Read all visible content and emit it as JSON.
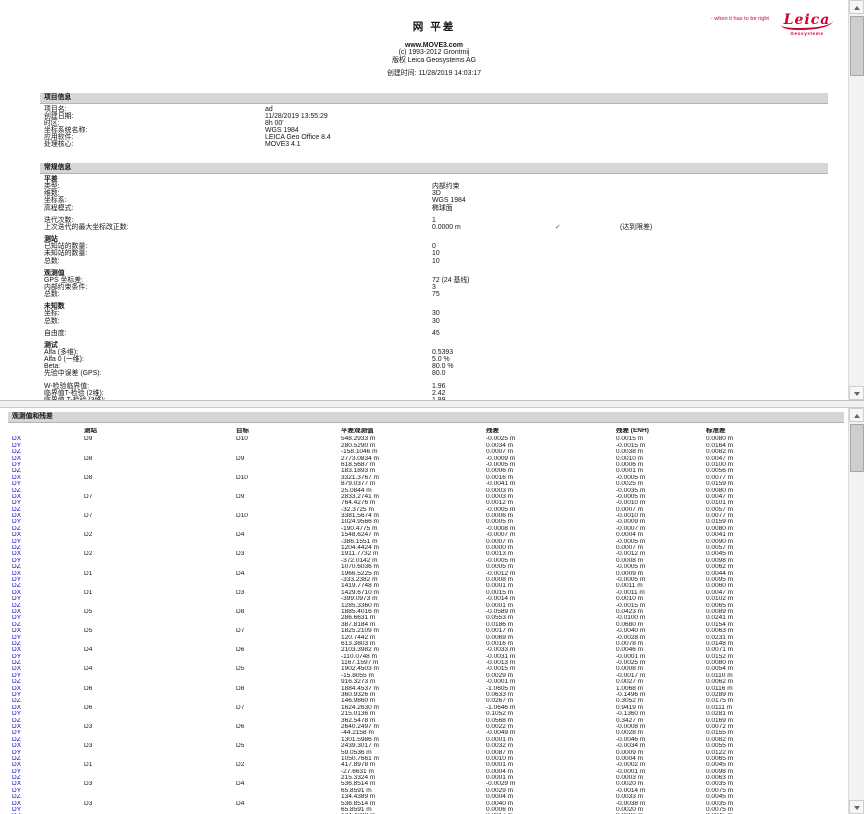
{
  "header": {
    "title": "网 平差",
    "site": "www.MOVE3.com",
    "copyright1": "(c) 1993-2012 Grontmij",
    "copyright2": "版权 Leica Geosystems AG",
    "created": "创建时间: 11/28/2019 14:03:17",
    "tagline": "- when it has to be right",
    "brand": "Leica",
    "brand_sub": "Geosystems",
    "brand_color": "#d6002f"
  },
  "colors": {
    "link_blue": "#0000cc",
    "check_green": "#089408",
    "section_bar": "#d6d6d6"
  },
  "check_glyph": "✓",
  "project_info": {
    "section_title": "项目信息",
    "rows": [
      [
        "项目名:",
        "ad"
      ],
      [
        "创建日期:",
        "11/28/2019 13:55:29"
      ],
      [
        "时区:",
        "8h 00'"
      ],
      [
        "坐标系统名称:",
        "WGS 1984"
      ],
      [
        "应用软件:",
        "LEICA Geo Office 8.4"
      ],
      [
        "处理核心:",
        "MOVE3 4.1"
      ]
    ]
  },
  "general_info": {
    "section_title": "常规信息",
    "rows": [
      {
        "t": "h",
        "label": "平差"
      },
      {
        "t": "r",
        "label": "类型:",
        "value": "内部约束"
      },
      {
        "t": "r",
        "label": "维数:",
        "value": "3D"
      },
      {
        "t": "r",
        "label": "坐标系:",
        "value": "WGS 1984"
      },
      {
        "t": "r",
        "label": "高程模式:",
        "value": "椭球面"
      },
      {
        "t": "s"
      },
      {
        "t": "r",
        "label": "迭代次数:",
        "value": "1"
      },
      {
        "t": "r",
        "label": "上次迭代的最大坐标改正数:",
        "value": "0.0000 m",
        "check": true,
        "note": "(达到限差)"
      },
      {
        "t": "s"
      },
      {
        "t": "h",
        "label": "测站"
      },
      {
        "t": "r",
        "label": "已知站的数量:",
        "value": "0"
      },
      {
        "t": "r",
        "label": "未知站的数量:",
        "value": "10"
      },
      {
        "t": "r",
        "label": "总数:",
        "value": "10"
      },
      {
        "t": "s"
      },
      {
        "t": "h",
        "label": "观测值"
      },
      {
        "t": "r",
        "label": "GPS 坐标差:",
        "value": "72 (24 基线)"
      },
      {
        "t": "r",
        "label": "内部约束条件:",
        "value": "3"
      },
      {
        "t": "r",
        "label": "总数:",
        "value": "75"
      },
      {
        "t": "s"
      },
      {
        "t": "h",
        "label": "未知数"
      },
      {
        "t": "r",
        "label": "坐标:",
        "value": "30"
      },
      {
        "t": "r",
        "label": "总数:",
        "value": "30"
      },
      {
        "t": "s"
      },
      {
        "t": "r",
        "label": "自由度:",
        "value": "45"
      },
      {
        "t": "s"
      },
      {
        "t": "h",
        "label": "测试"
      },
      {
        "t": "r",
        "label": "Alfa (多维):",
        "value": "0.5393"
      },
      {
        "t": "r",
        "label": "Alfa 0 (一维):",
        "value": "5.0 %"
      },
      {
        "t": "r",
        "label": "Beta:",
        "value": "80.0 %"
      },
      {
        "t": "r",
        "label": "先验中误差 (GPS):",
        "value": "80.0"
      },
      {
        "t": "s"
      },
      {
        "t": "r",
        "label": "W-检验临界值:",
        "value": "1.96"
      },
      {
        "t": "r",
        "label": "临界值T-检验 (2维):",
        "value": "2.42"
      },
      {
        "t": "r",
        "label": "临界值 T-检验 (3维):",
        "value": "1.89"
      },
      {
        "t": "r",
        "label": "F-检验临界值:",
        "value": "0.96"
      },
      {
        "t": "r",
        "label": "F-检验:",
        "value": "0.39",
        "check": true,
        "note": "(接受)"
      }
    ]
  },
  "observations": {
    "section_title": "观测值和残差",
    "columns": [
      "",
      "测站",
      "目标",
      "平差观测值",
      "残差",
      "残差 (ENH)",
      "标准差"
    ],
    "rows": [
      [
        "DX",
        "D9",
        "D10",
        "548.2933 m",
        "-0.0025 m",
        "0.0015 m",
        "0.0080 m"
      ],
      [
        "DY",
        "",
        "",
        "280.5290 m",
        "0.0034 m",
        "-0.0015 m",
        "0.0164 m"
      ],
      [
        "DZ",
        "",
        "",
        "-158.1046 m",
        "0.0007 m",
        "0.0038 m",
        "0.0082 m"
      ],
      [
        "DX",
        "D8",
        "D9",
        "2773.0834 m",
        "-0.0009 m",
        "0.0010 m",
        "0.0047 m"
      ],
      [
        "DY",
        "",
        "",
        "618.5687 m",
        "-0.0005 m",
        "0.0006 m",
        "0.0100 m"
      ],
      [
        "DZ",
        "",
        "",
        "183.1893 m",
        "0.0006 m",
        "0.0001 m",
        "0.0056 m"
      ],
      [
        "DX",
        "D8",
        "D10",
        "3321.3767 m",
        "0.0016 m",
        "-0.0005 m",
        "0.0077 m"
      ],
      [
        "DY",
        "",
        "",
        "879.0377 m",
        "-0.0041 m",
        "0.0025 m",
        "0.0159 m"
      ],
      [
        "DZ",
        "",
        "",
        "25.0844 m",
        "0.0003 m",
        "-0.0035 m",
        "0.0080 m"
      ],
      [
        "DX",
        "D7",
        "D9",
        "2833.2741 m",
        "0.0003 m",
        "-0.0005 m",
        "0.0047 m"
      ],
      [
        "DY",
        "",
        "",
        "764.4276 m",
        "0.0012 m",
        "-0.0010 m",
        "0.0101 m"
      ],
      [
        "DZ",
        "",
        "",
        "-32.3725 m",
        "-0.0005 m",
        "0.0007 m",
        "0.0057 m"
      ],
      [
        "DX",
        "D7",
        "D10",
        "3381.5674 m",
        "0.0006 m",
        "-0.0010 m",
        "0.0077 m"
      ],
      [
        "DY",
        "",
        "",
        "1024.9566 m",
        "0.0005 m",
        "-0.0009 m",
        "0.0159 m"
      ],
      [
        "DZ",
        "",
        "",
        "-190.4775 m",
        "-0.0008 m",
        "-0.0007 m",
        "0.0080 m"
      ],
      [
        "DX",
        "D2",
        "D4",
        "1548.6247 m",
        "-0.0007 m",
        "0.0004 m",
        "0.0041 m"
      ],
      [
        "DY",
        "",
        "",
        "-386.1551 m",
        "0.0007 m",
        "-0.0005 m",
        "0.0090 m"
      ],
      [
        "DZ",
        "",
        "",
        "1204.4424 m",
        "0.0000 m",
        "0.0007 m",
        "0.0057 m"
      ],
      [
        "DX",
        "D2",
        "D3",
        "1911.7732 m",
        "0.0013 m",
        "-0.0012 m",
        "0.0045 m"
      ],
      [
        "DY",
        "",
        "",
        "-372.0142 m",
        "-0.0005 m",
        "0.0008 m",
        "0.0098 m"
      ],
      [
        "DZ",
        "",
        "",
        "1070.6036 m",
        "0.0005 m",
        "-0.0005 m",
        "0.0062 m"
      ],
      [
        "DX",
        "D1",
        "D4",
        "1966.5225 m",
        "-0.0012 m",
        "0.0009 m",
        "0.0044 m"
      ],
      [
        "DY",
        "",
        "",
        "-333.2382 m",
        "0.0008 m",
        "-0.0005 m",
        "0.0095 m"
      ],
      [
        "DZ",
        "",
        "",
        "1419.7748 m",
        "0.0001 m",
        "0.0011 m",
        "0.0060 m"
      ],
      [
        "DX",
        "D1",
        "D3",
        "1429.6710 m",
        "0.0015 m",
        "-0.0011 m",
        "0.0047 m"
      ],
      [
        "DY",
        "",
        "",
        "-399.0973 m",
        "-0.0014 m",
        "0.0010 m",
        "0.0102 m"
      ],
      [
        "DZ",
        "",
        "",
        "1285.3360 m",
        "0.0001 m",
        "-0.0015 m",
        "0.0065 m"
      ],
      [
        "DX",
        "D5",
        "D8",
        "1885.4016 m",
        "-0.0589 m",
        "0.0423 m",
        "0.0089 m"
      ],
      [
        "DY",
        "",
        "",
        "286.6631 m",
        "0.0553 m",
        "-0.0100 m",
        "0.0241 m"
      ],
      [
        "DZ",
        "",
        "",
        "387.8184 m",
        "0.0186 m",
        "0.0680 m",
        "0.0154 m"
      ],
      [
        "DX",
        "D5",
        "D7",
        "1825.2109 m",
        "0.0017 m",
        "-0.0040 m",
        "0.0063 m"
      ],
      [
        "DY",
        "",
        "",
        "120.7442 m",
        "0.0069 m",
        "-0.0028 m",
        "0.0231 m"
      ],
      [
        "DZ",
        "",
        "",
        "613.3803 m",
        "0.0016 m",
        "0.0078 m",
        "0.0148 m"
      ],
      [
        "DX",
        "D4",
        "D6",
        "2103.3982 m",
        "-0.0033 m",
        "0.0046 m",
        "0.0071 m"
      ],
      [
        "DY",
        "",
        "",
        "-110.0748 m",
        "-0.0031 m",
        "-0.0001 m",
        "0.0152 m"
      ],
      [
        "DZ",
        "",
        "",
        "1167.1597 m",
        "-0.0013 m",
        "-0.0025 m",
        "0.0080 m"
      ],
      [
        "DX",
        "D4",
        "D5",
        "1902.4503 m",
        "-0.0015 m",
        "0.0008 m",
        "0.0054 m"
      ],
      [
        "DY",
        "",
        "",
        "-15.8055 m",
        "0.0029 m",
        "-0.0017 m",
        "0.0110 m"
      ],
      [
        "DZ",
        "",
        "",
        "916.3273 m",
        "-0.0001 m",
        "0.0027 m",
        "0.0062 m"
      ],
      [
        "DX",
        "D6",
        "D8",
        "1884.4537 m",
        "-1.0605 m",
        "1.0068 m",
        "0.0116 m"
      ],
      [
        "DY",
        "",
        "",
        "360.9326 m",
        "0.0633 m",
        "-0.1496 m",
        "0.0289 m"
      ],
      [
        "DZ",
        "",
        "",
        "146.9860 m",
        "0.0267 m",
        "0.3052 m",
        "0.0175 m"
      ],
      [
        "DX",
        "D6",
        "D7",
        "1624.2630 m",
        "-1.0646 m",
        "0.9419 m",
        "0.0111 m"
      ],
      [
        "DY",
        "",
        "",
        "215.0136 m",
        "0.1052 m",
        "-0.1360 m",
        "0.0281 m"
      ],
      [
        "DZ",
        "",
        "",
        "362.5478 m",
        "0.0568 m",
        "0.3427 m",
        "0.0169 m"
      ],
      [
        "DX",
        "D3",
        "D6",
        "2640.2497 m",
        "0.0022 m",
        "-0.0008 m",
        "0.0072 m"
      ],
      [
        "DY",
        "",
        "",
        "-44.2158 m",
        "-0.0049 m",
        "0.0028 m",
        "0.0155 m"
      ],
      [
        "DZ",
        "",
        "",
        "1301.5986 m",
        "0.0001 m",
        "-0.0046 m",
        "0.0082 m"
      ],
      [
        "DX",
        "D3",
        "D5",
        "2439.3017 m",
        "0.0032 m",
        "-0.0034 m",
        "0.0055 m"
      ],
      [
        "DY",
        "",
        "",
        "59.0536 m",
        "0.0087 m",
        "0.0009 m",
        "0.0122 m"
      ],
      [
        "DZ",
        "",
        "",
        "1050.7661 m",
        "0.0010 m",
        "0.0004 m",
        "0.0065 m"
      ],
      [
        "DX",
        "D1",
        "D2",
        "417.8978 m",
        "0.0001 m",
        "-0.0002 m",
        "0.0045 m"
      ],
      [
        "DY",
        "",
        "",
        "-27.6631 m",
        "0.0004 m",
        "-0.0001 m",
        "0.0098 m"
      ],
      [
        "DZ",
        "",
        "",
        "215.3324 m",
        "0.0001 m",
        "0.0003 m",
        "0.0063 m"
      ],
      [
        "DX",
        "D3",
        "D4",
        "536.8514 m",
        "-0.0029 m",
        "0.0020 m",
        "0.0035 m"
      ],
      [
        "DY",
        "",
        "",
        "65.8591 m",
        "0.0029 m",
        "-0.0014 m",
        "0.0075 m"
      ],
      [
        "DZ",
        "",
        "",
        "134.4389 m",
        "0.0004 m",
        "0.0033 m",
        "0.0045 m"
      ],
      [
        "DX",
        "D3",
        "D4",
        "536.8514 m",
        "0.0040 m",
        "-0.0038 m",
        "0.0035 m"
      ],
      [
        "DY",
        "",
        "",
        "65.8591 m",
        "0.0006 m",
        "0.0020 m",
        "0.0075 m"
      ],
      [
        "DZ",
        "",
        "",
        "134.4389 m",
        "0.0017 m",
        "0.0000 m",
        "0.0045 m"
      ],
      [
        "DX",
        "",
        "",
        "",
        "",
        "",
        ""
      ]
    ]
  }
}
